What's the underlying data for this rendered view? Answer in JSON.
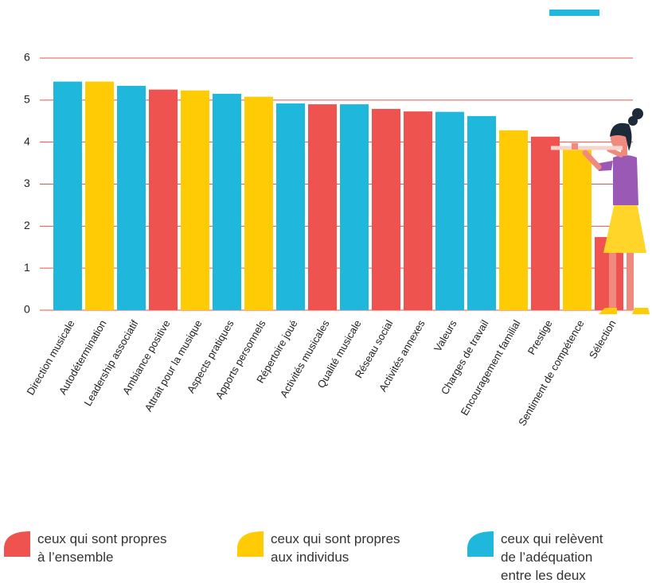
{
  "chart_data": {
    "type": "bar",
    "categories": [
      "Direction musicale",
      "Autodétermination",
      "Leadership associatif",
      "Ambiance positive",
      "Attrait pour la musique",
      "Aspects pratiques",
      "Apports personnels",
      "Répertoire joué",
      "Activités musicales",
      "Qualité musicale",
      "Réseau social",
      "Activités annexes",
      "Valeurs",
      "Charges de travail",
      "Encouragement familial",
      "Prestige",
      "Sentiment de compétence",
      "Sélection"
    ],
    "values": [
      5.44,
      5.44,
      5.34,
      5.25,
      5.23,
      5.15,
      5.08,
      4.92,
      4.9,
      4.9,
      4.79,
      4.73,
      4.72,
      4.62,
      4.28,
      4.13,
      3.86,
      1.74
    ],
    "colors": [
      "#1fb8dc",
      "#ffcb05",
      "#1fb8dc",
      "#ef5350",
      "#ffcb05",
      "#1fb8dc",
      "#ffcb05",
      "#1fb8dc",
      "#ef5350",
      "#1fb8dc",
      "#ef5350",
      "#ef5350",
      "#1fb8dc",
      "#1fb8dc",
      "#ffcb05",
      "#ef5350",
      "#ffcb05",
      "#ef5350"
    ],
    "ylim": [
      0,
      6
    ],
    "yticks": [
      0,
      1,
      2,
      3,
      4,
      5,
      6
    ],
    "grid": true,
    "grid_color": "#e8534a",
    "legend": [
      {
        "color": "#ef5350",
        "lines": [
          "ceux qui sont propres",
          "à l’ensemble"
        ]
      },
      {
        "color": "#ffcb05",
        "lines": [
          "ceux qui sont propres",
          "aux individus"
        ]
      },
      {
        "color": "#1fb8dc",
        "lines": [
          "ceux qui relèvent",
          "de l’adéquation",
          "entre les deux"
        ]
      }
    ]
  }
}
